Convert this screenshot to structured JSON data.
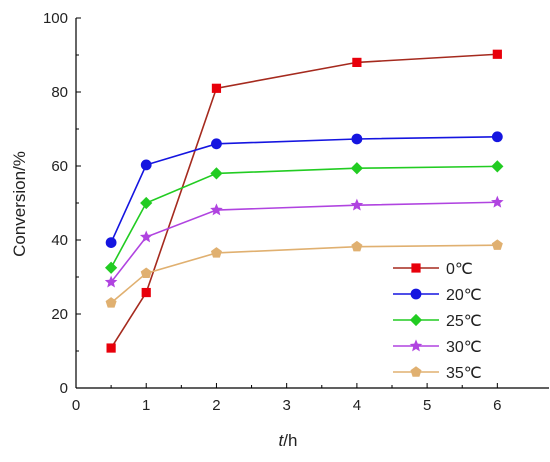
{
  "chart_data": {
    "type": "line",
    "x_tick_labels": [
      "0",
      "1",
      "2",
      "3",
      "4",
      "5",
      "6"
    ],
    "y_tick_labels": [
      "0",
      "20",
      "40",
      "60",
      "80",
      "100"
    ],
    "xlabel_italic": "t",
    "xlabel_rest": "/h",
    "ylabel": "Conversion/%",
    "x": [
      0.5,
      1,
      2,
      4,
      6
    ],
    "xlim": [
      0,
      6.75
    ],
    "ylim": [
      0,
      100
    ],
    "grid": false,
    "legend_position": "bottom-right",
    "series": [
      {
        "name": "0℃",
        "color": "#a52a1e",
        "marker": "square",
        "marker_color": "#e8000b",
        "values": [
          10.8,
          25.8,
          81.0,
          88.0,
          90.2
        ]
      },
      {
        "name": "20℃",
        "color": "#1515e0",
        "marker": "circle",
        "marker_color": "#1515e0",
        "values": [
          39.3,
          60.3,
          66.0,
          67.3,
          67.9
        ]
      },
      {
        "name": "25℃",
        "color": "#22cc22",
        "marker": "diamond",
        "marker_color": "#22cc22",
        "values": [
          32.5,
          50.0,
          58.0,
          59.4,
          59.9
        ]
      },
      {
        "name": "30℃",
        "color": "#b044e0",
        "marker": "star",
        "marker_color": "#b044e0",
        "values": [
          28.6,
          40.8,
          48.1,
          49.4,
          50.2
        ]
      },
      {
        "name": "35℃",
        "color": "#e0b070",
        "marker": "pentagon",
        "marker_color": "#e0b070",
        "values": [
          23.0,
          31.0,
          36.5,
          38.2,
          38.6
        ]
      }
    ]
  }
}
